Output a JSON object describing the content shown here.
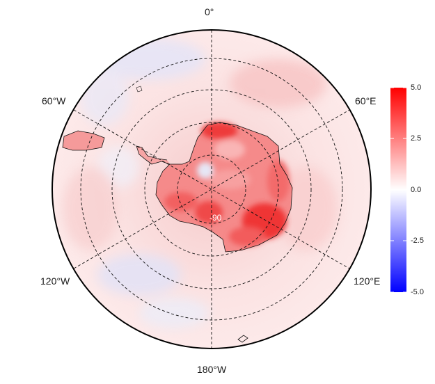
{
  "map": {
    "projection": "south polar stereographic",
    "longitude_labels": {
      "top": "0°",
      "upper_left": "60°W",
      "upper_right": "60°E",
      "lower_left": "120°W",
      "lower_right": "120°E",
      "bottom": "180°W"
    },
    "latitude_label": "-90",
    "graticule": "dashed",
    "colormap": {
      "low": "#0000ff",
      "mid": "#ffffff",
      "high": "#ff0000"
    }
  },
  "colorbar": {
    "min": -5.0,
    "max": 5.0,
    "ticks": [
      "5.0",
      "2.5",
      "0.0",
      "-2.5",
      "-5.0"
    ]
  },
  "icons": [
    "antarctica-coastline",
    "south-america-tip"
  ]
}
